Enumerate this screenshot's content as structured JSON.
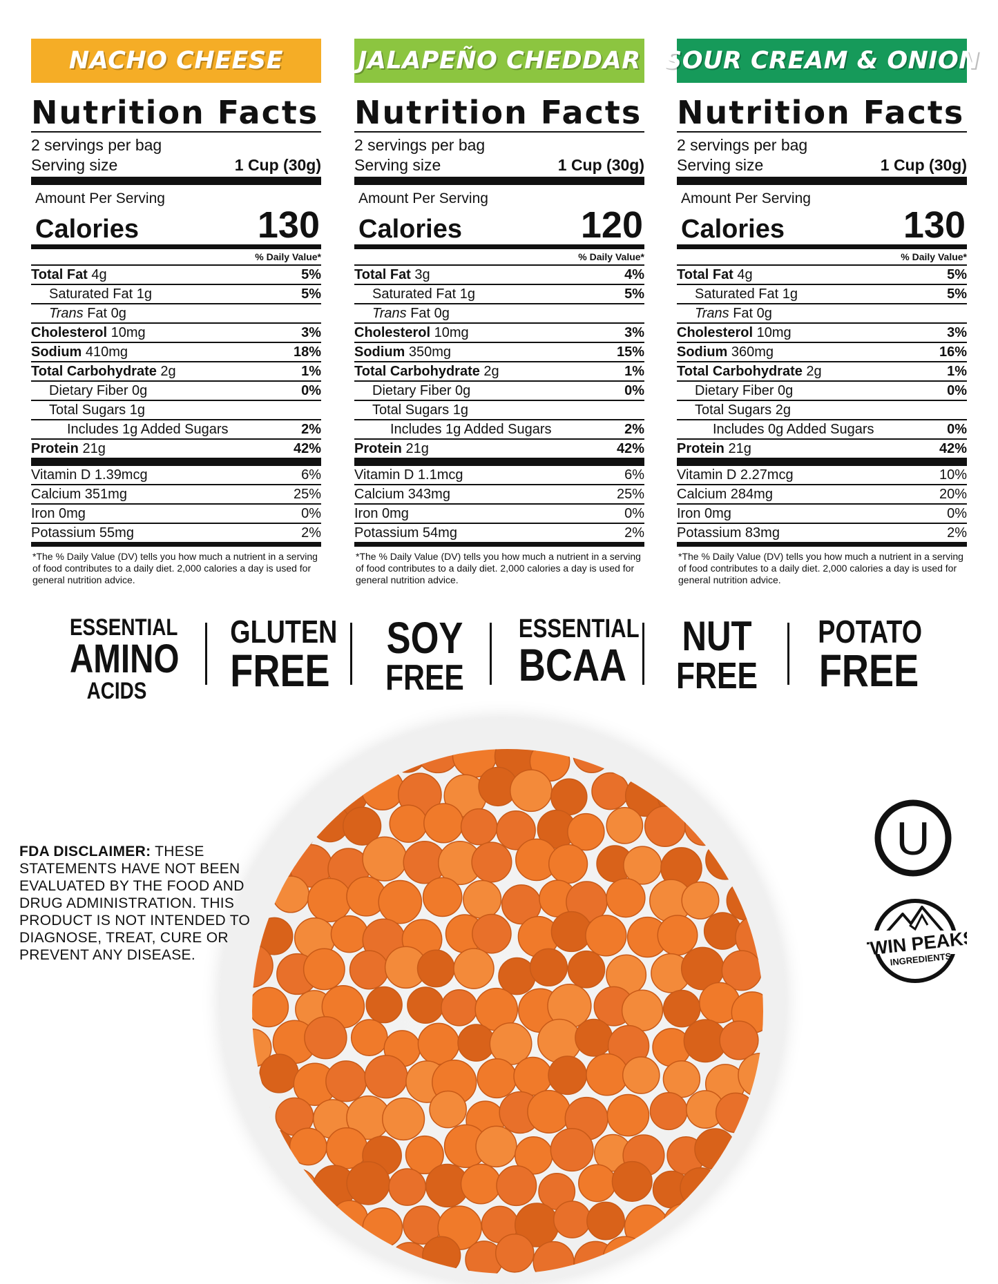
{
  "panels": [
    {
      "flavor": "NACHO CHEESE",
      "flavor_color": "#f5ad26",
      "title": "Nutrition Facts",
      "servings": "2 servings per bag",
      "serving_size_label": "Serving size",
      "serving_size_value": "1 Cup (30g)",
      "amount_label": "Amount Per Serving",
      "calories_label": "Calories",
      "calories": "130",
      "dv_header": "% Daily Value*",
      "rows": [
        {
          "name": "Total Fat",
          "amount": " 4g",
          "pct": "5%"
        },
        {
          "name": "Saturated Fat 1g",
          "amount": "",
          "pct": "5%"
        },
        {
          "name": "Trans",
          "amount": " Fat 0g",
          "pct": ""
        },
        {
          "name": "Cholesterol",
          "amount": " 10mg",
          "pct": "3%"
        },
        {
          "name": "Sodium",
          "amount": " 410mg",
          "pct": "18%"
        },
        {
          "name": "Total Carbohydrate",
          "amount": " 2g",
          "pct": "1%"
        },
        {
          "name": "Dietary Fiber 0g",
          "amount": "",
          "pct": "0%"
        },
        {
          "name": "Total Sugars 1g",
          "amount": "",
          "pct": ""
        },
        {
          "name": "Includes 1g Added Sugars",
          "amount": "",
          "pct": "2%"
        },
        {
          "name": "Protein",
          "amount": " 21g",
          "pct": "42%"
        }
      ],
      "vitamins": [
        {
          "name": "Vitamin D 1.39mcg",
          "pct": "6%"
        },
        {
          "name": "Calcium 351mg",
          "pct": "25%"
        },
        {
          "name": "Iron 0mg",
          "pct": "0%"
        },
        {
          "name": "Potassium 55mg",
          "pct": "2%"
        }
      ],
      "footnote": "*The % Daily Value (DV) tells you how much a nutrient in a serving of food contributes to a daily diet. 2,000 calories a day is used for general nutrition advice."
    },
    {
      "flavor": "JALAPEÑO CHEDDAR",
      "flavor_color": "#8cc540",
      "title": "Nutrition Facts",
      "servings": "2 servings per bag",
      "serving_size_label": "Serving size",
      "serving_size_value": "1 Cup (30g)",
      "amount_label": "Amount Per Serving",
      "calories_label": "Calories",
      "calories": "120",
      "dv_header": "% Daily Value*",
      "rows": [
        {
          "name": "Total Fat",
          "amount": " 3g",
          "pct": "4%"
        },
        {
          "name": "Saturated Fat 1g",
          "amount": "",
          "pct": "5%"
        },
        {
          "name": "Trans",
          "amount": " Fat 0g",
          "pct": ""
        },
        {
          "name": "Cholesterol",
          "amount": " 10mg",
          "pct": "3%"
        },
        {
          "name": "Sodium",
          "amount": " 350mg",
          "pct": "15%"
        },
        {
          "name": "Total Carbohydrate",
          "amount": " 2g",
          "pct": "1%"
        },
        {
          "name": "Dietary Fiber 0g",
          "amount": "",
          "pct": "0%"
        },
        {
          "name": "Total Sugars 1g",
          "amount": "",
          "pct": ""
        },
        {
          "name": "Includes 1g Added Sugars",
          "amount": "",
          "pct": "2%"
        },
        {
          "name": "Protein",
          "amount": " 21g",
          "pct": "42%"
        }
      ],
      "vitamins": [
        {
          "name": "Vitamin D  1.1mcg",
          "pct": "6%"
        },
        {
          "name": "Calcium  343mg",
          "pct": "25%"
        },
        {
          "name": "Iron 0mg",
          "pct": "0%"
        },
        {
          "name": "Potassium 54mg",
          "pct": "2%"
        }
      ],
      "footnote": "*The % Daily Value (DV) tells you how much a nutrient in a serving of food contributes to a daily diet. 2,000 calories a day is used for general nutrition advice."
    },
    {
      "flavor": "SOUR CREAM & ONION",
      "flavor_color": "#169a5a",
      "title": "Nutrition Facts",
      "servings": "2 servings per bag",
      "serving_size_label": "Serving size",
      "serving_size_value": "1 Cup (30g)",
      "amount_label": "Amount Per Serving",
      "calories_label": "Calories",
      "calories": "130",
      "dv_header": "% Daily Value*",
      "rows": [
        {
          "name": "Total Fat",
          "amount": " 4g",
          "pct": "5%"
        },
        {
          "name": "Saturated Fat 1g",
          "amount": "",
          "pct": "5%"
        },
        {
          "name": "Trans",
          "amount": " Fat 0g",
          "pct": ""
        },
        {
          "name": "Cholesterol",
          "amount": " 10mg",
          "pct": "3%"
        },
        {
          "name": "Sodium",
          "amount": " 360mg",
          "pct": "16%"
        },
        {
          "name": "Total Carbohydrate",
          "amount": " 2g",
          "pct": "1%"
        },
        {
          "name": "Dietary Fiber 0g",
          "amount": "",
          "pct": "0%"
        },
        {
          "name": "Total Sugars 2g",
          "amount": "",
          "pct": ""
        },
        {
          "name": "Includes 0g Added Sugars",
          "amount": "",
          "pct": "0%"
        },
        {
          "name": "Protein",
          "amount": " 21g",
          "pct": "42%"
        }
      ],
      "vitamins": [
        {
          "name": "Vitamin D 2.27mcg",
          "pct": "10%"
        },
        {
          "name": "Calcium 284mg",
          "pct": "20%"
        },
        {
          "name": "Iron 0mg",
          "pct": "0%"
        },
        {
          "name": "Potassium 83mg",
          "pct": "2%"
        }
      ],
      "footnote": "*The % Daily Value (DV) tells you how much a nutrient in a serving of food contributes to a daily diet. 2,000 calories a day is used for general nutrition advice."
    }
  ],
  "claims": [
    {
      "line1": "ESSENTIAL",
      "line2": "AMINO",
      "line3": "ACIDS"
    },
    {
      "line1": "GLUTEN",
      "line2": "FREE"
    },
    {
      "line1": "SOY",
      "line2": "FREE"
    },
    {
      "line1": "ESSENTIAL",
      "line2": "BCAA"
    },
    {
      "line1": "NUT",
      "line2": "FREE"
    },
    {
      "line1": "POTATO",
      "line2": "FREE"
    }
  ],
  "disclaimer": {
    "label": "FDA DISCLAIMER:",
    "text": " THESE STATEMENTS HAVE NOT BEEN EVALUATED BY THE FOOD AND DRUG ADMINISTRATION. THIS PRODUCT IS NOT INTENDED TO DIAGNOSE, TREAT, CURE OR PREVENT ANY DISEASE."
  },
  "logos": {
    "kosher": "U",
    "brand_line1": "TWIN PEAKS",
    "brand_line2": "INGREDIENTS"
  },
  "colors": {
    "puff": "#f07a2a",
    "puff_dark": "#d9621a"
  }
}
